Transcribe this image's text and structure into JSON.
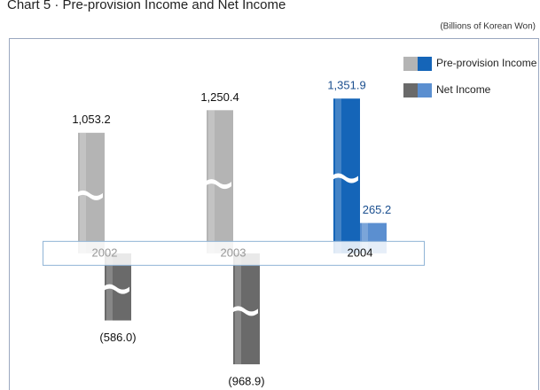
{
  "chart_data": {
    "type": "bar",
    "title": "Chart 5 · Pre-provision Income and Net Income",
    "subtitle": "(Billions of Korean Won)",
    "categories": [
      "2002",
      "2003",
      "2004"
    ],
    "series": [
      {
        "name": "Pre-provision Income",
        "color": [
          "#b4b4b4",
          "#b4b4b4",
          "#1565b8"
        ],
        "values": [
          1053.2,
          1250.4,
          1351.9
        ],
        "value_labels": [
          "1,053.2",
          "1,250.4",
          "1,351.9"
        ]
      },
      {
        "name": "Net Income",
        "color": [
          "#6a6a6a",
          "#6a6a6a",
          "#5b8fd0"
        ],
        "values": [
          -586.0,
          -968.9,
          265.2
        ],
        "value_labels": [
          "(586.0)",
          "(968.9)",
          "265.2"
        ]
      }
    ],
    "ylim": [
      -1000,
      1400
    ]
  }
}
